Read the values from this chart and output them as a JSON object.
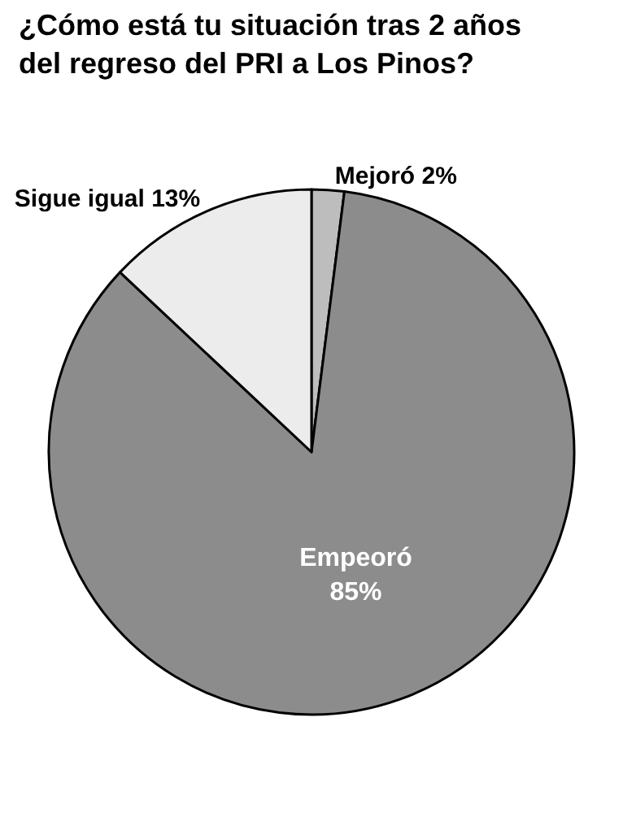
{
  "chart_data": {
    "type": "pie",
    "title": "¿Cómo está tu situación tras 2 años del regreso del PRI a Los Pinos?",
    "categories": [
      "Mejoró",
      "Empeoró",
      "Sigue igual"
    ],
    "values": [
      2,
      85,
      13
    ],
    "value_labels": [
      "2%",
      "85%",
      "13%"
    ],
    "colors": [
      "#bdbdbd",
      "#8c8c8c",
      "#ececec"
    ],
    "legend": false
  }
}
